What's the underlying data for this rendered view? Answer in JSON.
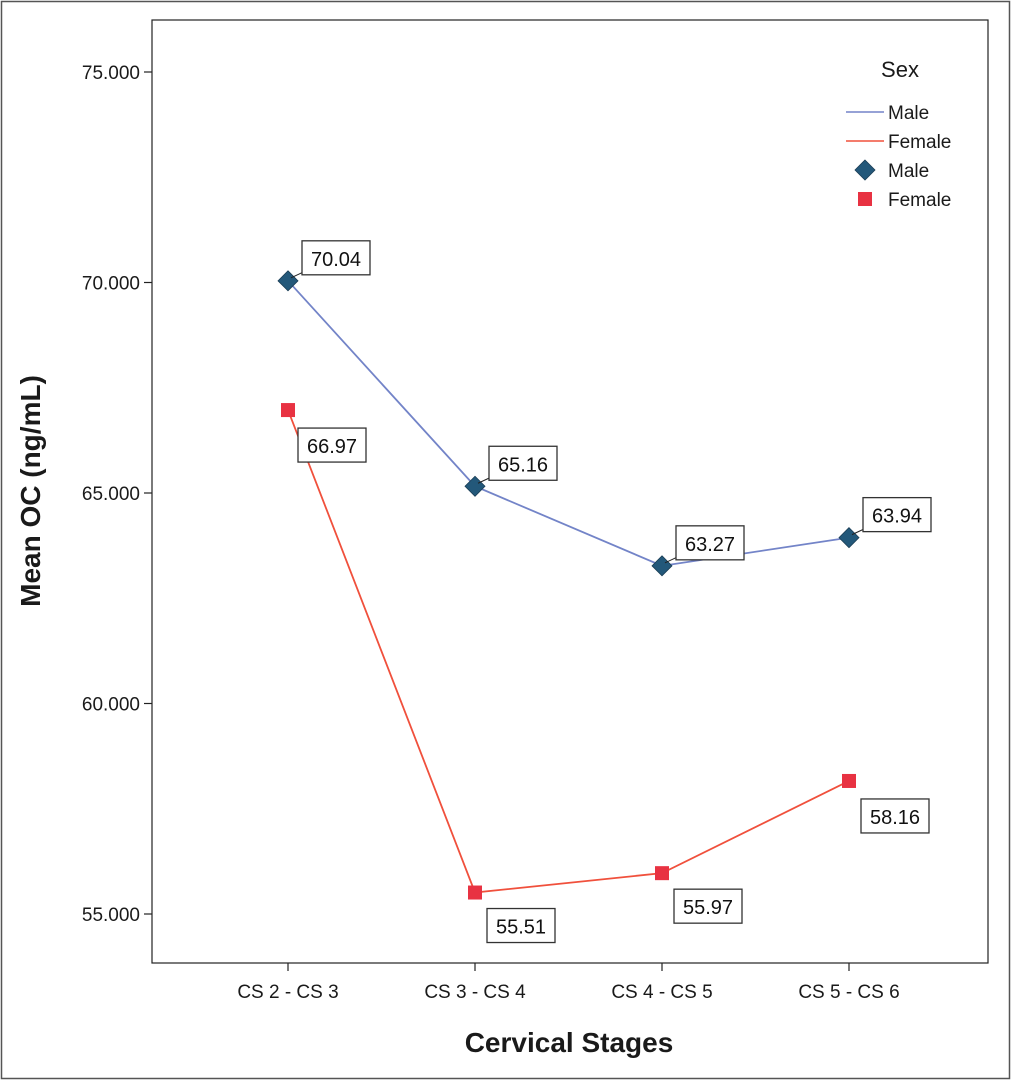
{
  "chart_data": {
    "type": "line",
    "title": "",
    "xlabel": "Cervical Stages",
    "ylabel": "Mean OC (ng/mL)",
    "categories": [
      "CS 2 - CS 3",
      "CS 3 - CS 4",
      "CS 4 - CS 5",
      "CS 5 - CS 6"
    ],
    "ylim": [
      53,
      76
    ],
    "yticks": [
      55,
      60,
      65,
      70,
      75
    ],
    "ytick_labels": [
      "55.000",
      "60.000",
      "65.000",
      "70.000",
      "75.000"
    ],
    "grid": false,
    "legend_title": "Sex",
    "legend_placement": "top-right",
    "series": [
      {
        "name": "Male",
        "values": [
          70.04,
          65.16,
          63.27,
          63.94
        ],
        "data_labels": [
          "70.04",
          "65.16",
          "63.27",
          "63.94"
        ],
        "color": "#7384c8",
        "marker": "diamond",
        "marker_color": "#23587a"
      },
      {
        "name": "Female",
        "values": [
          66.97,
          55.51,
          55.97,
          58.16
        ],
        "data_labels": [
          "66.97",
          "55.51",
          "55.97",
          "58.16"
        ],
        "color": "#f0503c",
        "marker": "square",
        "marker_color": "#e83242"
      }
    ]
  }
}
